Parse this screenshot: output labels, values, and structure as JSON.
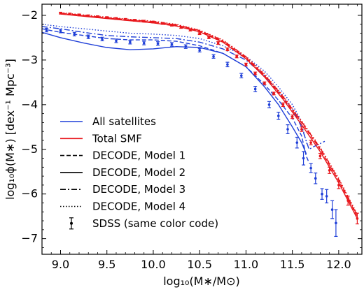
{
  "chart_data": {
    "type": "line",
    "xlabel": "log₁₀(M∗/M⊙)",
    "ylabel": "log₁₀ϕ(M∗) [dex⁻¹ Mpc⁻³]",
    "xlim": [
      8.8,
      12.25
    ],
    "ylim": [
      -7.35,
      -1.75
    ],
    "xticks": [
      9.0,
      9.5,
      10.0,
      10.5,
      11.0,
      11.5,
      12.0
    ],
    "xtick_labels": [
      "9.0",
      "9.5",
      "10.0",
      "10.5",
      "11.0",
      "11.5",
      "12.0"
    ],
    "yticks": [
      -2,
      -3,
      -4,
      -5,
      -6,
      -7
    ],
    "ytick_labels": [
      "−2",
      "−3",
      "−4",
      "−5",
      "−6",
      "−7"
    ],
    "grid": false,
    "legend_position": "lower-left",
    "colors": {
      "satellites": "#1f3fd8",
      "total": "#e8161b",
      "data": "#000000"
    },
    "legend": [
      {
        "label": "All satellites",
        "kind": "line",
        "color": "#1f3fd8",
        "dash": "solid"
      },
      {
        "label": "Total SMF",
        "kind": "line",
        "color": "#e8161b",
        "dash": "solid"
      },
      {
        "label": "DECODE, Model 1",
        "kind": "line",
        "color": "#000000",
        "dash": "dashed"
      },
      {
        "label": "DECODE, Model 2",
        "kind": "line",
        "color": "#000000",
        "dash": "solid"
      },
      {
        "label": "DECODE, Model 3",
        "kind": "line",
        "color": "#000000",
        "dash": "dashdot"
      },
      {
        "label": "DECODE, Model 4",
        "kind": "line",
        "color": "#000000",
        "dash": "dotted"
      },
      {
        "label": "SDSS (same color code)",
        "kind": "errorbar",
        "color": "#000000"
      }
    ],
    "series": [
      {
        "group": "satellites",
        "model": 1,
        "dash": "dashed",
        "x": [
          8.8,
          9.0,
          9.25,
          9.5,
          9.75,
          10.0,
          10.25,
          10.5,
          10.75,
          11.0,
          11.2,
          11.35,
          11.5,
          11.6,
          11.65,
          11.68
        ],
        "y": [
          -2.3,
          -2.38,
          -2.45,
          -2.52,
          -2.55,
          -2.55,
          -2.58,
          -2.68,
          -2.85,
          -3.15,
          -3.55,
          -3.9,
          -4.3,
          -4.7,
          -5.15,
          -5.3
        ]
      },
      {
        "group": "satellites",
        "model": 2,
        "dash": "solid",
        "x": [
          8.8,
          9.0,
          9.25,
          9.5,
          9.75,
          10.0,
          10.25,
          10.5,
          10.75,
          11.0,
          11.2,
          11.35,
          11.5,
          11.6,
          11.65
        ],
        "y": [
          -2.38,
          -2.5,
          -2.62,
          -2.72,
          -2.77,
          -2.75,
          -2.7,
          -2.72,
          -2.85,
          -3.15,
          -3.6,
          -4.0,
          -4.5,
          -4.85,
          -5.1
        ]
      },
      {
        "group": "satellites",
        "model": 3,
        "dash": "dashdot",
        "x": [
          8.8,
          9.0,
          9.25,
          9.5,
          9.75,
          10.0,
          10.25,
          10.5,
          10.75,
          11.0,
          11.2,
          11.35,
          11.5,
          11.6,
          11.68,
          11.72,
          11.85
        ],
        "y": [
          -2.25,
          -2.3,
          -2.38,
          -2.45,
          -2.48,
          -2.5,
          -2.52,
          -2.6,
          -2.75,
          -3.0,
          -3.35,
          -3.7,
          -4.1,
          -4.5,
          -5.0,
          -4.95,
          -4.82
        ]
      },
      {
        "group": "satellites",
        "model": 4,
        "dash": "dotted",
        "x": [
          8.8,
          9.0,
          9.25,
          9.5,
          9.75,
          10.0,
          10.25,
          10.5,
          10.75,
          11.0,
          11.2,
          11.35,
          11.5,
          11.58,
          11.62,
          11.66
        ],
        "y": [
          -2.2,
          -2.25,
          -2.3,
          -2.35,
          -2.4,
          -2.42,
          -2.45,
          -2.52,
          -2.68,
          -2.92,
          -3.25,
          -3.6,
          -4.0,
          -4.3,
          -4.6,
          -4.9
        ]
      },
      {
        "group": "total",
        "model": 1,
        "dash": "dashed",
        "x": [
          9.0,
          9.25,
          9.5,
          9.75,
          10.0,
          10.25,
          10.5,
          10.75,
          11.0,
          11.2,
          11.4,
          11.6,
          11.8,
          12.0,
          12.2
        ],
        "y": [
          -1.96,
          -2.01,
          -2.06,
          -2.11,
          -2.15,
          -2.22,
          -2.35,
          -2.58,
          -2.95,
          -3.35,
          -3.85,
          -4.4,
          -5.0,
          -5.7,
          -6.5
        ]
      },
      {
        "group": "total",
        "model": 2,
        "dash": "solid",
        "x": [
          9.0,
          9.25,
          9.5,
          9.75,
          10.0,
          10.25,
          10.5,
          10.75,
          11.0,
          11.2,
          11.4,
          11.6,
          11.8,
          12.0,
          12.2
        ],
        "y": [
          -1.97,
          -2.02,
          -2.07,
          -2.12,
          -2.17,
          -2.24,
          -2.37,
          -2.6,
          -2.97,
          -3.38,
          -3.88,
          -4.45,
          -5.05,
          -5.75,
          -6.55
        ]
      },
      {
        "group": "total",
        "model": 3,
        "dash": "dashdot",
        "x": [
          9.0,
          9.25,
          9.5,
          9.75,
          10.0,
          10.25,
          10.5,
          10.75,
          11.0,
          11.2,
          11.4,
          11.6,
          11.8,
          12.0,
          12.2
        ],
        "y": [
          -1.95,
          -2.0,
          -2.05,
          -2.1,
          -2.14,
          -2.21,
          -2.34,
          -2.56,
          -2.93,
          -3.33,
          -3.82,
          -4.38,
          -4.97,
          -5.68,
          -6.48
        ]
      },
      {
        "group": "total",
        "model": 4,
        "dash": "dotted",
        "x": [
          9.0,
          9.25,
          9.5,
          9.75,
          10.0,
          10.25,
          10.5,
          10.75,
          11.0,
          11.2,
          11.4,
          11.6,
          11.8,
          12.0,
          12.2
        ],
        "y": [
          -1.94,
          -1.99,
          -2.04,
          -2.09,
          -2.13,
          -2.2,
          -2.33,
          -2.55,
          -2.92,
          -3.31,
          -3.8,
          -4.36,
          -4.95,
          -5.65,
          -6.45
        ]
      }
    ],
    "sdss": [
      {
        "group": "satellites",
        "x": [
          8.85,
          9.0,
          9.15,
          9.3,
          9.45,
          9.6,
          9.75,
          9.9,
          10.05,
          10.2,
          10.35,
          10.5,
          10.65,
          10.8,
          10.95,
          11.1,
          11.25,
          11.35,
          11.45,
          11.55,
          11.62
        ],
        "y": [
          -2.33,
          -2.35,
          -2.42,
          -2.48,
          -2.53,
          -2.57,
          -2.6,
          -2.62,
          -2.63,
          -2.65,
          -2.7,
          -2.78,
          -2.92,
          -3.1,
          -3.35,
          -3.65,
          -4.0,
          -4.25,
          -4.55,
          -4.85,
          -5.2
        ],
        "err": [
          0.04,
          0.04,
          0.04,
          0.04,
          0.04,
          0.04,
          0.04,
          0.04,
          0.04,
          0.04,
          0.04,
          0.04,
          0.04,
          0.05,
          0.05,
          0.06,
          0.07,
          0.08,
          0.1,
          0.12,
          0.15
        ]
      },
      {
        "group": "satellites-tail",
        "x": [
          11.7,
          11.75,
          11.82,
          11.87,
          11.93,
          11.97
        ],
        "y": [
          -5.42,
          -5.65,
          -6.0,
          -6.05,
          -6.35,
          -6.65
        ],
        "err": [
          0.1,
          0.12,
          0.12,
          0.15,
          0.2,
          0.3
        ]
      },
      {
        "group": "total",
        "x": [
          9.0,
          9.1,
          9.2,
          9.3,
          9.4,
          9.5,
          9.6,
          9.7,
          9.8,
          9.9,
          10.0,
          10.1,
          10.2,
          10.3,
          10.4,
          10.5,
          10.6,
          10.7,
          10.8,
          10.9,
          11.0,
          11.1,
          11.2,
          11.3,
          11.4,
          11.5,
          11.6,
          11.7,
          11.8,
          11.9,
          12.0,
          12.1,
          12.2
        ],
        "y": [
          -1.95,
          -1.97,
          -1.99,
          -2.01,
          -2.03,
          -2.05,
          -2.07,
          -2.09,
          -2.11,
          -2.13,
          -2.15,
          -2.18,
          -2.22,
          -2.27,
          -2.33,
          -2.41,
          -2.5,
          -2.62,
          -2.76,
          -2.92,
          -3.1,
          -3.3,
          -3.52,
          -3.75,
          -4.0,
          -4.27,
          -4.55,
          -4.85,
          -5.15,
          -5.47,
          -5.8,
          -6.15,
          -6.55
        ],
        "err": [
          0.02,
          0.02,
          0.02,
          0.02,
          0.02,
          0.02,
          0.02,
          0.02,
          0.02,
          0.02,
          0.02,
          0.02,
          0.02,
          0.02,
          0.02,
          0.02,
          0.02,
          0.03,
          0.03,
          0.03,
          0.03,
          0.03,
          0.03,
          0.03,
          0.04,
          0.04,
          0.05,
          0.05,
          0.06,
          0.07,
          0.08,
          0.1,
          0.12
        ]
      }
    ]
  }
}
